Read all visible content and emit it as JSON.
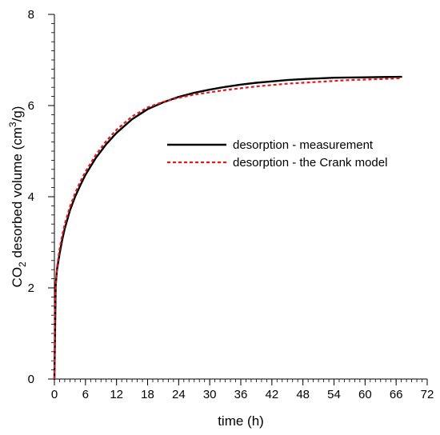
{
  "chart_data": {
    "type": "line",
    "xlabel": "time (h)",
    "ylabel": {
      "prefix": "CO",
      "sub": "2",
      "middle": " desorbed volume (cm",
      "sup": "3",
      "suffix": "/g)"
    },
    "xlim": [
      0,
      72
    ],
    "ylim": [
      0,
      8
    ],
    "x_ticks": [
      0,
      6,
      12,
      18,
      24,
      30,
      36,
      42,
      48,
      54,
      60,
      66,
      72
    ],
    "y_ticks": [
      0,
      2,
      4,
      6,
      8
    ],
    "x_minor_step": 1,
    "y_minor_step": 0.2,
    "grid": false,
    "legend_position": "center-right",
    "series": [
      {
        "name": "desorption - measurement",
        "color": "#000000",
        "style": "solid",
        "x": [
          0,
          0.25,
          0.5,
          1,
          1.5,
          2,
          3,
          4,
          5,
          6,
          8,
          10,
          12,
          15,
          18,
          21,
          24,
          27,
          30,
          33,
          36,
          39,
          42,
          45,
          48,
          51,
          54,
          57,
          60,
          63,
          67
        ],
        "y": [
          0,
          2.05,
          2.4,
          2.75,
          3.05,
          3.3,
          3.7,
          4.0,
          4.25,
          4.48,
          4.85,
          5.15,
          5.4,
          5.7,
          5.92,
          6.07,
          6.19,
          6.28,
          6.35,
          6.41,
          6.46,
          6.5,
          6.53,
          6.56,
          6.58,
          6.595,
          6.61,
          6.615,
          6.62,
          6.625,
          6.63
        ]
      },
      {
        "name": "desorption - the Crank model",
        "color": "#e8151b",
        "style": "dashed",
        "x": [
          0,
          0.1,
          0.25,
          0.5,
          1,
          1.5,
          2,
          3,
          4,
          5,
          6,
          8,
          10,
          12,
          15,
          18,
          21,
          24,
          27,
          30,
          33,
          36,
          39,
          42,
          45,
          48,
          51,
          54,
          57,
          60,
          63,
          67
        ],
        "y": [
          0,
          1.5,
          2.05,
          2.45,
          2.85,
          3.15,
          3.4,
          3.78,
          4.08,
          4.33,
          4.55,
          4.92,
          5.22,
          5.47,
          5.76,
          5.96,
          6.08,
          6.17,
          6.24,
          6.29,
          6.34,
          6.38,
          6.42,
          6.45,
          6.48,
          6.5,
          6.52,
          6.54,
          6.56,
          6.57,
          6.58,
          6.6
        ]
      }
    ]
  }
}
